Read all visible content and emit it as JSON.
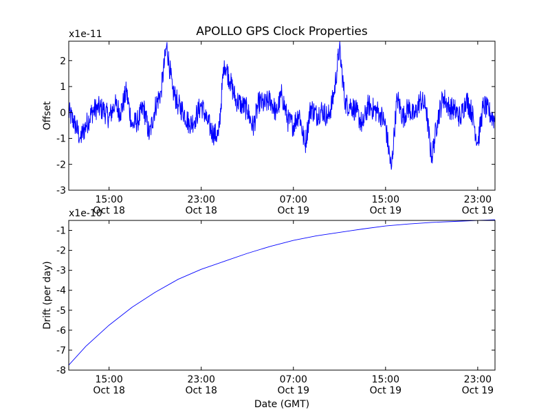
{
  "figure_title": "APOLLO GPS Clock Properties",
  "chart_data": [
    {
      "type": "line",
      "title": "APOLLO GPS Clock Properties",
      "xlabel": "",
      "ylabel": "Offset",
      "exponent_label": "x1e-11",
      "ylim": [
        -3,
        2.75
      ],
      "yticks": [
        -3,
        -2,
        -1,
        0,
        1,
        2
      ],
      "xlim_hours": [
        11.5,
        48.5
      ],
      "xticks": [
        {
          "hour": 15,
          "time": "15:00",
          "date": "Oct 18"
        },
        {
          "hour": 23,
          "time": "23:00",
          "date": "Oct 18"
        },
        {
          "hour": 31,
          "time": "07:00",
          "date": "Oct 19"
        },
        {
          "hour": 39,
          "time": "15:00",
          "date": "Oct 19"
        },
        {
          "hour": 47,
          "time": "23:00",
          "date": "Oct 19"
        }
      ],
      "line_color": "#0000ff",
      "grid": false,
      "series": [
        {
          "x_hours": [
            11.5,
            12.0,
            12.5,
            13.0,
            13.5,
            14.0,
            14.5,
            15.0,
            15.5,
            16.0,
            16.5,
            17.0,
            17.5,
            18.0,
            18.5,
            19.0,
            19.5,
            20.0,
            20.5,
            21.0,
            21.5,
            22.0,
            22.5,
            23.0,
            23.5,
            24.0,
            24.5,
            25.0,
            25.5,
            26.0,
            26.5,
            27.0,
            27.5,
            28.0,
            28.5,
            29.0,
            29.5,
            30.0,
            30.5,
            31.0,
            31.5,
            32.0,
            32.5,
            33.0,
            33.5,
            34.0,
            34.5,
            35.0,
            35.5,
            36.0,
            36.5,
            37.0,
            37.5,
            38.0,
            38.5,
            39.0,
            39.5,
            40.0,
            40.5,
            41.0,
            41.5,
            42.0,
            42.5,
            43.0,
            43.5,
            44.0,
            44.5,
            45.0,
            45.5,
            46.0,
            46.5,
            47.0,
            47.5,
            48.0,
            48.5
          ],
          "values": [
            0.0,
            -0.4,
            -1.0,
            -0.5,
            0.0,
            0.2,
            0.1,
            -0.2,
            0.3,
            0.0,
            0.8,
            -0.5,
            -0.3,
            0.2,
            -0.9,
            0.2,
            0.8,
            2.6,
            0.9,
            0.3,
            0.0,
            -0.5,
            -0.2,
            0.3,
            -0.3,
            -0.8,
            -0.9,
            2.0,
            1.2,
            0.5,
            0.3,
            0.1,
            -0.6,
            0.4,
            0.3,
            0.5,
            0.0,
            0.7,
            -0.3,
            -0.5,
            0.0,
            -1.3,
            0.2,
            -0.1,
            0.1,
            -0.2,
            0.6,
            2.5,
            0.3,
            0.3,
            0.0,
            -0.5,
            0.3,
            0.1,
            0.0,
            -0.5,
            -2.2,
            0.6,
            -0.2,
            0.2,
            -0.2,
            0.5,
            0.2,
            -1.8,
            -0.3,
            0.6,
            0.2,
            0.1,
            -0.2,
            0.5,
            0.0,
            -1.2,
            0.3,
            0.0,
            -0.3
          ]
        }
      ]
    },
    {
      "type": "line",
      "title": "",
      "xlabel": "Date (GMT)",
      "ylabel": "Drift (per day)",
      "exponent_label": "x1e-10",
      "ylim": [
        -8,
        -0.5
      ],
      "yticks": [
        -8,
        -7,
        -6,
        -5,
        -4,
        -3,
        -2,
        -1
      ],
      "xlim_hours": [
        11.5,
        48.5
      ],
      "xticks": [
        {
          "hour": 15,
          "time": "15:00",
          "date": "Oct 18"
        },
        {
          "hour": 23,
          "time": "23:00",
          "date": "Oct 18"
        },
        {
          "hour": 31,
          "time": "07:00",
          "date": "Oct 19"
        },
        {
          "hour": 39,
          "time": "15:00",
          "date": "Oct 19"
        },
        {
          "hour": 47,
          "time": "23:00",
          "date": "Oct 19"
        }
      ],
      "line_color": "#0000ff",
      "grid": false,
      "series": [
        {
          "x_hours": [
            11.5,
            13,
            15,
            17,
            19,
            21,
            23,
            25,
            27,
            29,
            31,
            33,
            35,
            37,
            39,
            41,
            43,
            45,
            47,
            48.5
          ],
          "values": [
            -7.75,
            -6.8,
            -5.75,
            -4.85,
            -4.1,
            -3.45,
            -2.95,
            -2.55,
            -2.15,
            -1.8,
            -1.5,
            -1.27,
            -1.1,
            -0.93,
            -0.78,
            -0.68,
            -0.6,
            -0.55,
            -0.5,
            -0.47
          ]
        }
      ]
    }
  ]
}
